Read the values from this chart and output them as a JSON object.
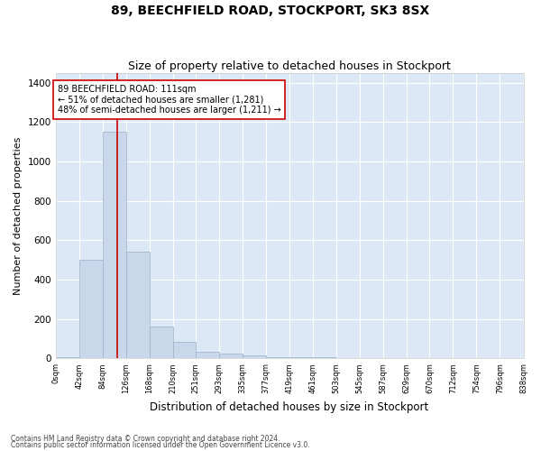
{
  "title": "89, BEECHFIELD ROAD, STOCKPORT, SK3 8SX",
  "subtitle": "Size of property relative to detached houses in Stockport",
  "xlabel": "Distribution of detached houses by size in Stockport",
  "ylabel": "Number of detached properties",
  "bar_color": "#c8d8ea",
  "bar_edge_color": "#9ab0c8",
  "background_color": "#dce8f5",
  "grid_color": "#ffffff",
  "fig_background": "#ffffff",
  "property_line_x": 111,
  "property_line_color": "#cc0000",
  "annotation_text": "89 BEECHFIELD ROAD: 111sqm\n← 51% of detached houses are smaller (1,281)\n48% of semi-detached houses are larger (1,211) →",
  "annotation_box_color": "#ffffff",
  "annotation_box_edge": "#cc0000",
  "bin_edges": [
    0,
    42,
    84,
    126,
    168,
    210,
    251,
    293,
    335,
    377,
    419,
    461,
    503,
    545,
    587,
    629,
    670,
    712,
    754,
    796,
    838
  ],
  "bin_labels": [
    "0sqm",
    "42sqm",
    "84sqm",
    "126sqm",
    "168sqm",
    "210sqm",
    "251sqm",
    "293sqm",
    "335sqm",
    "377sqm",
    "419sqm",
    "461sqm",
    "503sqm",
    "545sqm",
    "587sqm",
    "629sqm",
    "670sqm",
    "712sqm",
    "754sqm",
    "796sqm",
    "838sqm"
  ],
  "bar_heights": [
    5,
    500,
    1150,
    540,
    160,
    85,
    32,
    25,
    15,
    8,
    5,
    5,
    0,
    0,
    0,
    0,
    0,
    0,
    0,
    0
  ],
  "ylim": [
    0,
    1450
  ],
  "yticks": [
    0,
    200,
    400,
    600,
    800,
    1000,
    1200,
    1400
  ],
  "footnote1": "Contains HM Land Registry data © Crown copyright and database right 2024.",
  "footnote2": "Contains public sector information licensed under the Open Government Licence v3.0."
}
